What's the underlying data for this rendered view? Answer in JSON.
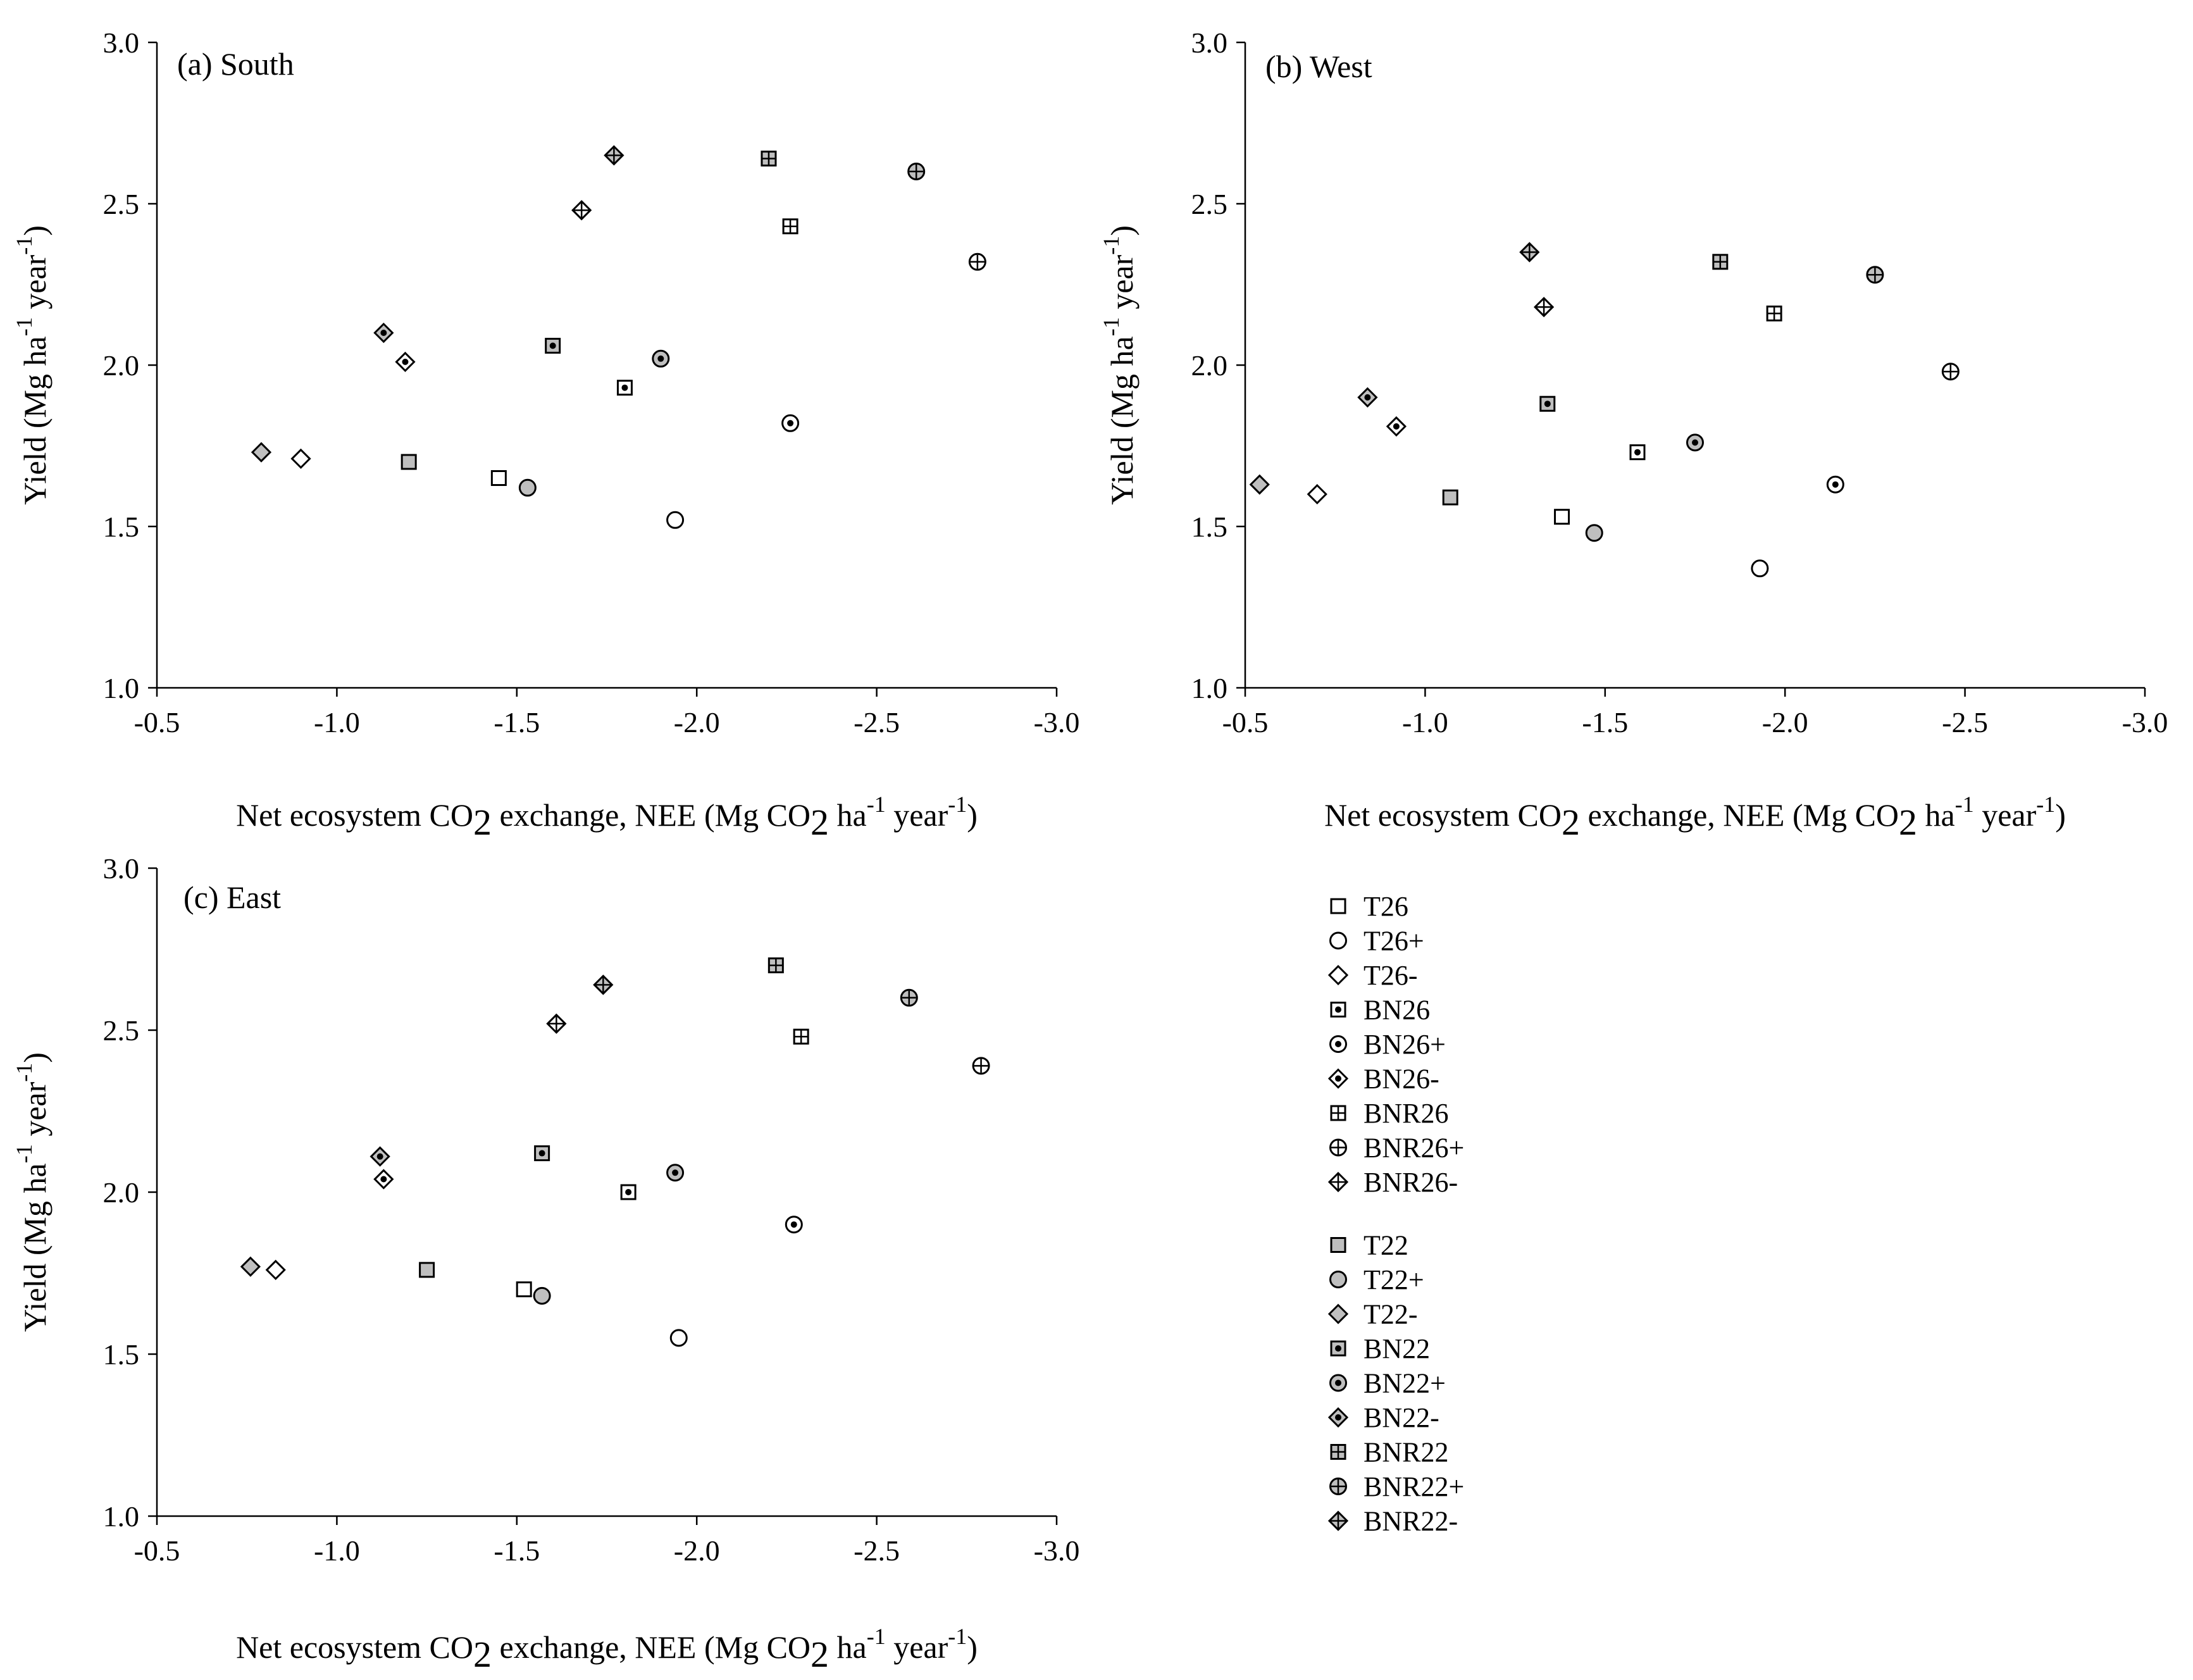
{
  "chart_data": [
    {
      "type": "scatter",
      "panel": "a",
      "title": "(a) South",
      "xlabel": "Net ecosystem CO2 exchange, NEE (Mg CO2 ha-1 year-1)",
      "ylabel": "Yield (Mg ha-1 year-1)",
      "xlim": [
        -0.5,
        -3.0
      ],
      "ylim": [
        1.0,
        3.0
      ],
      "x_ticks": [
        "-0.5",
        "-1.0",
        "-1.5",
        "-2.0",
        "-2.5",
        "-3.0"
      ],
      "y_ticks": [
        "1.0",
        "1.5",
        "2.0",
        "2.5",
        "3.0"
      ],
      "grid": false,
      "series": [
        {
          "name": "T26",
          "x": -1.45,
          "y": 1.65
        },
        {
          "name": "T26+",
          "x": -1.94,
          "y": 1.52
        },
        {
          "name": "T26-",
          "x": -0.9,
          "y": 1.71
        },
        {
          "name": "BN26",
          "x": -1.8,
          "y": 1.93
        },
        {
          "name": "BN26+",
          "x": -2.26,
          "y": 1.82
        },
        {
          "name": "BN26-",
          "x": -1.19,
          "y": 2.01
        },
        {
          "name": "BNR26",
          "x": -2.26,
          "y": 2.43
        },
        {
          "name": "BNR26+",
          "x": -2.78,
          "y": 2.32
        },
        {
          "name": "BNR26-",
          "x": -1.68,
          "y": 2.48
        },
        {
          "name": "T22",
          "x": -1.2,
          "y": 1.7
        },
        {
          "name": "T22+",
          "x": -1.53,
          "y": 1.62
        },
        {
          "name": "T22-",
          "x": -0.79,
          "y": 1.73
        },
        {
          "name": "BN22",
          "x": -1.6,
          "y": 2.06
        },
        {
          "name": "BN22+",
          "x": -1.9,
          "y": 2.02
        },
        {
          "name": "BN22-",
          "x": -1.13,
          "y": 2.1
        },
        {
          "name": "BNR22",
          "x": -2.2,
          "y": 2.64
        },
        {
          "name": "BNR22+",
          "x": -2.61,
          "y": 2.6
        },
        {
          "name": "BNR22-",
          "x": -1.77,
          "y": 2.65
        }
      ]
    },
    {
      "type": "scatter",
      "panel": "b",
      "title": "(b) West",
      "xlabel": "Net ecosystem CO2 exchange, NEE (Mg CO2 ha-1 year-1)",
      "ylabel": "Yield (Mg ha-1 year-1)",
      "xlim": [
        -0.5,
        -3.0
      ],
      "ylim": [
        1.0,
        3.0
      ],
      "x_ticks": [
        "-0.5",
        "-1.0",
        "-1.5",
        "-2.0",
        "-2.5",
        "-3.0"
      ],
      "y_ticks": [
        "1.0",
        "1.5",
        "2.0",
        "2.5",
        "3.0"
      ],
      "grid": false,
      "series": [
        {
          "name": "T26",
          "x": -1.38,
          "y": 1.53
        },
        {
          "name": "T26+",
          "x": -1.93,
          "y": 1.37
        },
        {
          "name": "T26-",
          "x": -0.7,
          "y": 1.6
        },
        {
          "name": "BN26",
          "x": -1.59,
          "y": 1.73
        },
        {
          "name": "BN26+",
          "x": -2.14,
          "y": 1.63
        },
        {
          "name": "BN26-",
          "x": -0.92,
          "y": 1.81
        },
        {
          "name": "BNR26",
          "x": -1.97,
          "y": 2.16
        },
        {
          "name": "BNR26+",
          "x": -2.46,
          "y": 1.98
        },
        {
          "name": "BNR26-",
          "x": -1.33,
          "y": 2.18
        },
        {
          "name": "T22",
          "x": -1.07,
          "y": 1.59
        },
        {
          "name": "T22+",
          "x": -1.47,
          "y": 1.48
        },
        {
          "name": "T22-",
          "x": -0.54,
          "y": 1.63
        },
        {
          "name": "BN22",
          "x": -1.34,
          "y": 1.88
        },
        {
          "name": "BN22+",
          "x": -1.75,
          "y": 1.76
        },
        {
          "name": "BN22-",
          "x": -0.84,
          "y": 1.9
        },
        {
          "name": "BNR22",
          "x": -1.82,
          "y": 2.32
        },
        {
          "name": "BNR22+",
          "x": -2.25,
          "y": 2.28
        },
        {
          "name": "BNR22-",
          "x": -1.29,
          "y": 2.35
        }
      ]
    },
    {
      "type": "scatter",
      "panel": "c",
      "title": "(c) East",
      "xlabel": "Net ecosystem CO2 exchange, NEE (Mg CO2 ha-1 year-1)",
      "ylabel": "Yield (Mg ha-1 year-1)",
      "xlim": [
        -0.5,
        -3.0
      ],
      "ylim": [
        1.0,
        3.0
      ],
      "x_ticks": [
        "-0.5",
        "-1.0",
        "-1.5",
        "-2.0",
        "-2.5",
        "-3.0"
      ],
      "y_ticks": [
        "1.0",
        "1.5",
        "2.0",
        "2.5",
        "3.0"
      ],
      "grid": false,
      "series": [
        {
          "name": "T26",
          "x": -1.52,
          "y": 1.7
        },
        {
          "name": "T26+",
          "x": -1.95,
          "y": 1.55
        },
        {
          "name": "T26-",
          "x": -0.83,
          "y": 1.76
        },
        {
          "name": "BN26",
          "x": -1.81,
          "y": 2.0
        },
        {
          "name": "BN26+",
          "x": -2.27,
          "y": 1.9
        },
        {
          "name": "BN26-",
          "x": -1.13,
          "y": 2.04
        },
        {
          "name": "BNR26",
          "x": -2.29,
          "y": 2.48
        },
        {
          "name": "BNR26+",
          "x": -2.79,
          "y": 2.39
        },
        {
          "name": "BNR26-",
          "x": -1.61,
          "y": 2.52
        },
        {
          "name": "T22",
          "x": -1.25,
          "y": 1.76
        },
        {
          "name": "T22+",
          "x": -1.57,
          "y": 1.68
        },
        {
          "name": "T22-",
          "x": -0.76,
          "y": 1.77
        },
        {
          "name": "BN22",
          "x": -1.57,
          "y": 2.12
        },
        {
          "name": "BN22+",
          "x": -1.94,
          "y": 2.06
        },
        {
          "name": "BN22-",
          "x": -1.12,
          "y": 2.11
        },
        {
          "name": "BNR22",
          "x": -2.22,
          "y": 2.7
        },
        {
          "name": "BNR22+",
          "x": -2.59,
          "y": 2.6
        },
        {
          "name": "BNR22-",
          "x": -1.74,
          "y": 2.64
        }
      ]
    }
  ],
  "axis_text": {
    "ylabel_main": "Yield (Mg ha",
    "ylabel_sup1": "-1",
    "ylabel_mid": " year",
    "ylabel_sup2": "-1",
    "ylabel_end": ")",
    "xlabel_main": "Net ecosystem CO",
    "xlabel_sub1": "2",
    "xlabel_mid1": " exchange, NEE (Mg CO",
    "xlabel_sub2": "2",
    "xlabel_mid2": " ha",
    "xlabel_sup1": "-1",
    "xlabel_mid3": " year",
    "xlabel_sup2": "-1",
    "xlabel_end": ")"
  },
  "legend": [
    {
      "label": "T26",
      "marker": "square",
      "fill": "white"
    },
    {
      "label": "T26+",
      "marker": "circle",
      "fill": "white"
    },
    {
      "label": "T26-",
      "marker": "diamond",
      "fill": "white"
    },
    {
      "label": "BN26",
      "marker": "square",
      "fill": "dot"
    },
    {
      "label": "BN26+",
      "marker": "circle",
      "fill": "dot"
    },
    {
      "label": "BN26-",
      "marker": "diamond",
      "fill": "dot"
    },
    {
      "label": "BNR26",
      "marker": "square",
      "fill": "cross"
    },
    {
      "label": "BNR26+",
      "marker": "circle",
      "fill": "cross"
    },
    {
      "label": "BNR26-",
      "marker": "diamond",
      "fill": "cross"
    },
    {
      "label": "T22",
      "marker": "square",
      "fill": "gray"
    },
    {
      "label": "T22+",
      "marker": "circle",
      "fill": "gray"
    },
    {
      "label": "T22-",
      "marker": "diamond",
      "fill": "gray"
    },
    {
      "label": "BN22",
      "marker": "square",
      "fill": "graydot"
    },
    {
      "label": "BN22+",
      "marker": "circle",
      "fill": "graydot"
    },
    {
      "label": "BN22-",
      "marker": "diamond",
      "fill": "graydot"
    },
    {
      "label": "BNR22",
      "marker": "square",
      "fill": "graycross"
    },
    {
      "label": "BNR22+",
      "marker": "circle",
      "fill": "graycross"
    },
    {
      "label": "BNR22-",
      "marker": "diamond",
      "fill": "graycross"
    }
  ],
  "colors": {
    "marker_stroke": "#000000",
    "white_fill": "#ffffff",
    "gray_fill": "#bfbfbf",
    "axis": "#000000"
  }
}
